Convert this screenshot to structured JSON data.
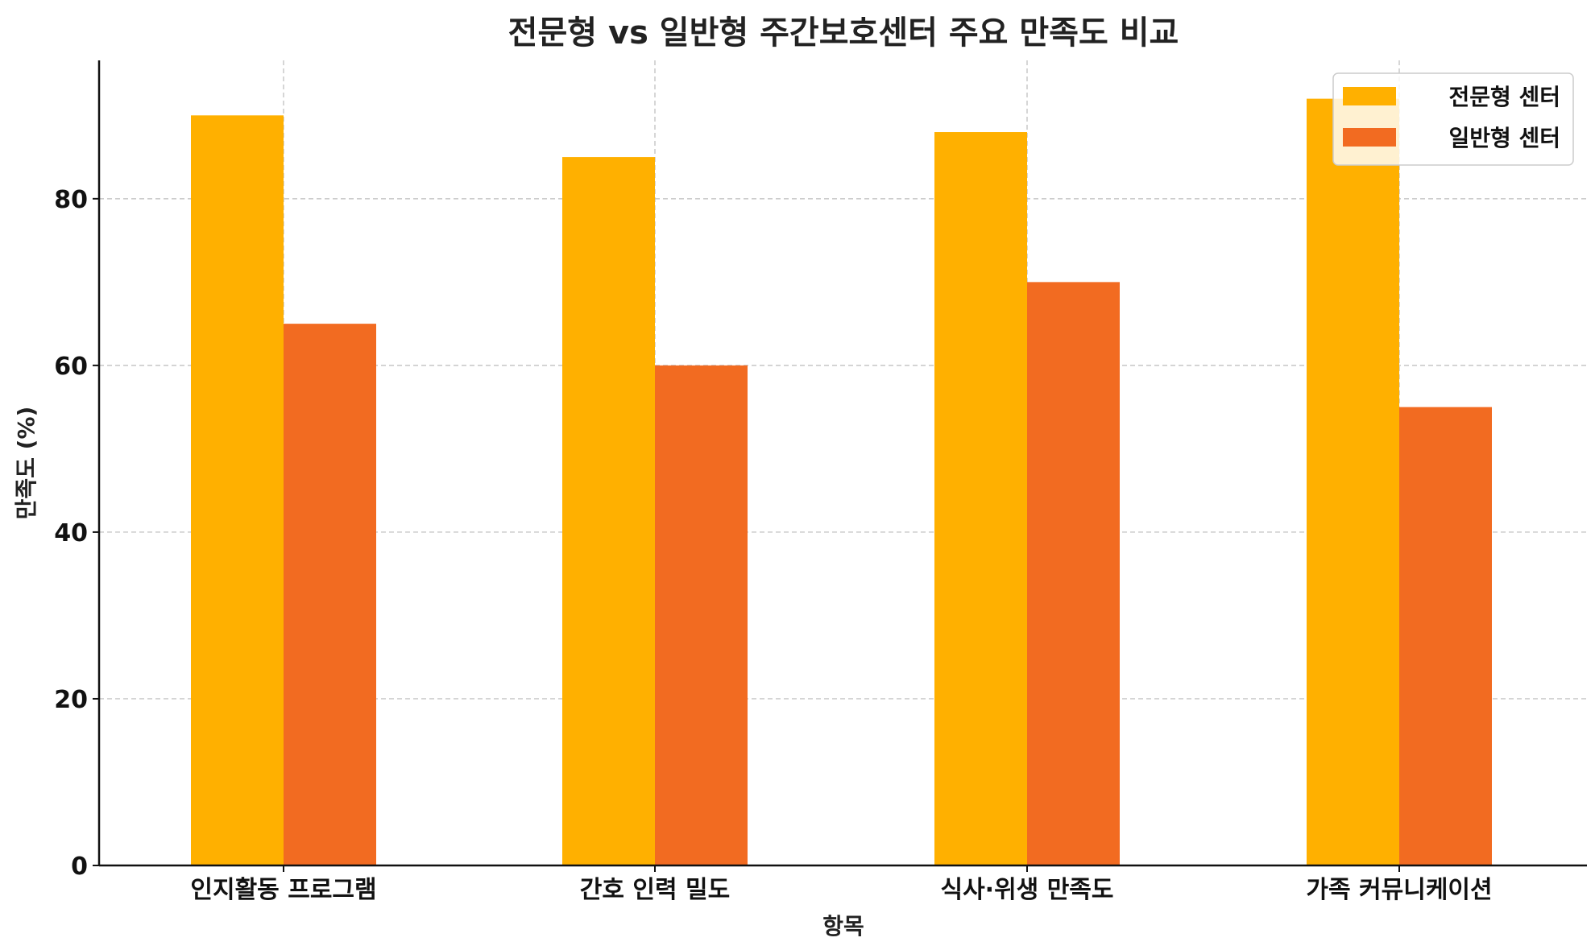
{
  "chart_data": {
    "type": "bar",
    "title": "전문형 vs 일반형 주간보호센터 주요 만족도 비교",
    "xlabel": "항목",
    "ylabel": "만족도 (%)",
    "categories": [
      "인지활동 프로그램",
      "간호 인력 밀도",
      "식사·위생 만족도",
      "가족 커뮤니케이션"
    ],
    "series": [
      {
        "name": "전문형 센터",
        "values": [
          90,
          85,
          88,
          92
        ],
        "color": "#FFB000"
      },
      {
        "name": "일반형 센터",
        "values": [
          65,
          60,
          70,
          55
        ],
        "color": "#F26B21"
      }
    ],
    "ylim": [
      0,
      96.6
    ],
    "yticks": [
      0,
      20,
      40,
      60,
      80
    ],
    "grid": true,
    "legend": "top-right"
  }
}
